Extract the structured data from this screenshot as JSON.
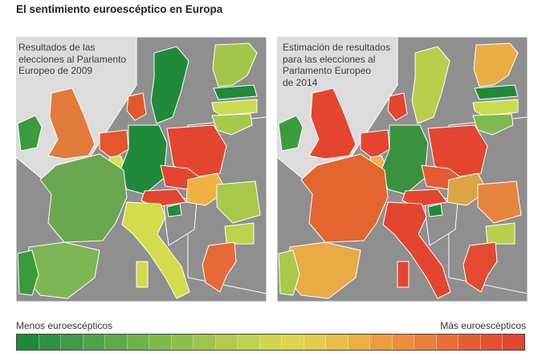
{
  "title": "El sentimiento euroescéptico en Europa",
  "maps": {
    "left": {
      "caption": "Resultados de las\nelecciones al Parlamento\nEuropeo de 2009",
      "colors": {
        "background": "#dcdcdc",
        "sea": "#dcdcdc",
        "non_eu": "#8f8f8f",
        "ireland": "#3d9a3d",
        "uk": "#e27a3c",
        "france": "#6aa84f",
        "spain": "#7db653",
        "portugal": "#3d9a3d",
        "benelux": "#e4572e",
        "luxembourg": "#d6df52",
        "denmark": "#e4572e",
        "germany": "#1f8a3a",
        "poland": "#e4452e",
        "czech": "#e4452e",
        "austria": "#e4452e",
        "hungary": "#f0b143",
        "slovenia": "#1f8a3a",
        "italy": "#d3dc4a",
        "sweden": "#1f8a3a",
        "finland": "#a2c64a",
        "estonia": "#1f8a3a",
        "latvia": "#c9dc4e",
        "lithuania": "#a7c94a",
        "romania": "#a8c94a",
        "bulgaria": "#bcd24c",
        "greece": "#e56a38"
      }
    },
    "right": {
      "caption": "Estimación de resultados\npara las elecciones al\nParlamento Europeo\nde 2014",
      "colors": {
        "background": "#dcdcdc",
        "sea": "#dcdcdc",
        "non_eu": "#8f8f8f",
        "ireland": "#3d9a3d",
        "uk": "#e4452e",
        "france": "#e5652f",
        "spain": "#e8ab45",
        "portugal": "#a8c94a",
        "benelux": "#e4452e",
        "luxembourg": "#efb04a",
        "denmark": "#e4452e",
        "germany": "#3a923f",
        "poland": "#e4452e",
        "czech": "#e45a34",
        "austria": "#e4452e",
        "hungary": "#d9a641",
        "slovenia": "#1f8a3a",
        "italy": "#e4452e",
        "sweden": "#b7cf4b",
        "finland": "#e9ad48",
        "estonia": "#1f8a3a",
        "latvia": "#c9dc4e",
        "lithuania": "#7fb94f",
        "romania": "#e8853c",
        "bulgaria": "#b7d04c",
        "greece": "#e44a30"
      }
    }
  },
  "legend": {
    "min_label": "Menos euroescépticos",
    "max_label": "Más euroescépticos",
    "colors": [
      "#1f8a3a",
      "#2f9240",
      "#3e9a45",
      "#4fa347",
      "#5eaa48",
      "#6eb14a",
      "#7fb84b",
      "#8fbe4c",
      "#a0c44d",
      "#b1ca4e",
      "#c2d14f",
      "#d1d650",
      "#dcd64f",
      "#e3cc4b",
      "#e8bd47",
      "#ebae43",
      "#ec9e3f",
      "#ec8e3b",
      "#eb7e38",
      "#ea6e35",
      "#e85e32",
      "#e6502f",
      "#e4452e"
    ]
  }
}
